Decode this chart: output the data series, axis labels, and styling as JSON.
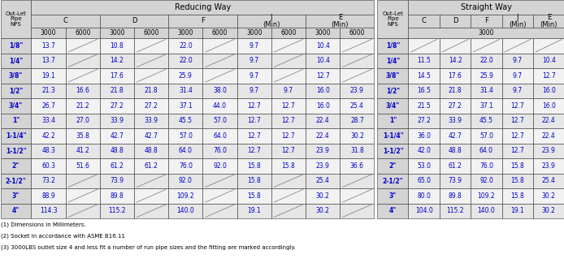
{
  "outlet_pipe_nps": [
    "1/8\"",
    "1/4\"",
    "3/8\"",
    "1/2\"",
    "3/4\"",
    "1\"",
    "1-1/4\"",
    "1-1/2\"",
    "2\"",
    "2-1/2\"",
    "3\"",
    "4\""
  ],
  "reducing_data": [
    [
      "13.7",
      "",
      "10.8",
      "",
      "22.0",
      "",
      "9.7",
      "",
      "10.4",
      ""
    ],
    [
      "13.7",
      "",
      "14.2",
      "",
      "22.0",
      "",
      "9.7",
      "",
      "10.4",
      ""
    ],
    [
      "19.1",
      "",
      "17.6",
      "",
      "25.9",
      "",
      "9.7",
      "",
      "12.7",
      ""
    ],
    [
      "21.3",
      "16.6",
      "21.8",
      "21.8",
      "31.4",
      "38.0",
      "9.7",
      "9.7",
      "16.0",
      "23.9"
    ],
    [
      "26.7",
      "21.2",
      "27.2",
      "27.2",
      "37.1",
      "44.0",
      "12.7",
      "12.7",
      "16.0",
      "25.4"
    ],
    [
      "33.4",
      "27.0",
      "33.9",
      "33.9",
      "45.5",
      "57.0",
      "12.7",
      "12.7",
      "22.4",
      "28.7"
    ],
    [
      "42.2",
      "35.8",
      "42.7",
      "42.7",
      "57.0",
      "64.0",
      "12.7",
      "12.7",
      "22.4",
      "30.2"
    ],
    [
      "48.3",
      "41.2",
      "48.8",
      "48.8",
      "64.0",
      "76.0",
      "12.7",
      "12.7",
      "23.9",
      "31.8"
    ],
    [
      "60.3",
      "51.6",
      "61.2",
      "61.2",
      "76.0",
      "92.0",
      "15.8",
      "15.8",
      "23.9",
      "36.6"
    ],
    [
      "73.2",
      "",
      "73.9",
      "",
      "92.0",
      "",
      "15.8",
      "",
      "25.4",
      ""
    ],
    [
      "88.9",
      "",
      "89.8",
      "",
      "109.2",
      "",
      "15.8",
      "",
      "30.2",
      ""
    ],
    [
      "114.3",
      "",
      "115.2",
      "",
      "140.0",
      "",
      "19.1",
      "",
      "30.2",
      ""
    ]
  ],
  "straight_data": [
    [
      "",
      "",
      "",
      "",
      ""
    ],
    [
      "11.5",
      "14.2",
      "22.0",
      "9.7",
      "10.4"
    ],
    [
      "14.5",
      "17.6",
      "25.9",
      "9.7",
      "12.7"
    ],
    [
      "16.5",
      "21.8",
      "31.4",
      "9.7",
      "16.0"
    ],
    [
      "21.5",
      "27.2",
      "37.1",
      "12.7",
      "16.0"
    ],
    [
      "27.2",
      "33.9",
      "45.5",
      "12.7",
      "22.4"
    ],
    [
      "36.0",
      "42.7",
      "57.0",
      "12.7",
      "22.4"
    ],
    [
      "42.0",
      "48.8",
      "64.0",
      "12.7",
      "23.9"
    ],
    [
      "53.0",
      "61.2",
      "76.0",
      "15.8",
      "23.9"
    ],
    [
      "65.0",
      "73.9",
      "92.0",
      "15.8",
      "25.4"
    ],
    [
      "80.0",
      "89.8",
      "109.2",
      "15.8",
      "30.2"
    ],
    [
      "104.0",
      "115.2",
      "140.0",
      "19.1",
      "30.2"
    ]
  ],
  "footnotes": [
    "(1) Dimensions in Millimeters.",
    "(2) Socket in accordance with ASME B16.11",
    "(3) 3000LBS outlet size 4 and less fit a number of run pipe sizes and the fitting are marked accordingly."
  ],
  "bg_header": "#d4d4d4",
  "bg_light": "#f2f2f2",
  "bg_dark": "#e6e6e6",
  "txt_blue": "#0000cd",
  "txt_black": "#000000",
  "diag_color": "#888888"
}
